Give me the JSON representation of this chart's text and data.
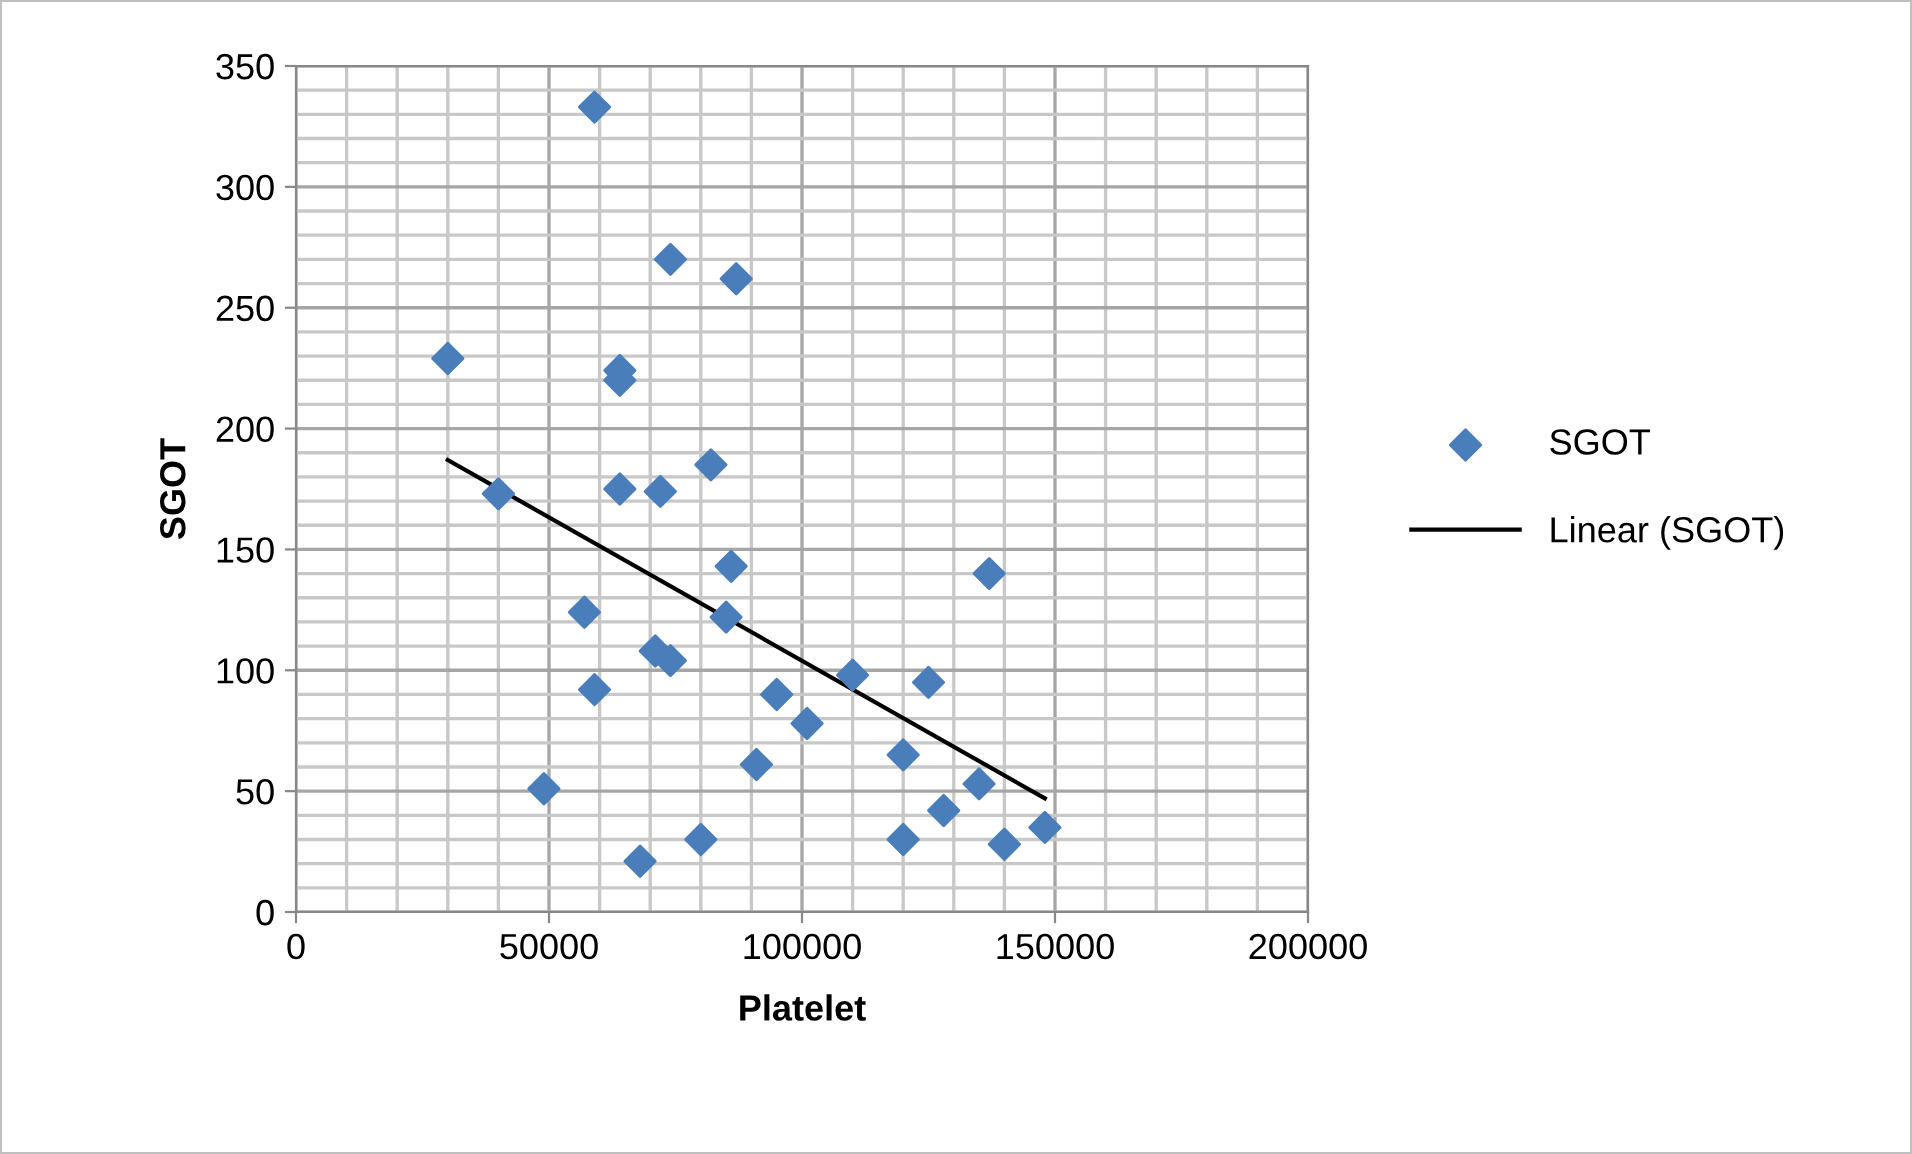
{
  "chart_data": {
    "type": "scatter",
    "xlabel": "Platelet",
    "ylabel": "SGOT",
    "xlim": [
      0,
      200000
    ],
    "xticks": [
      0,
      50000,
      100000,
      150000,
      200000
    ],
    "ylim": [
      0,
      350
    ],
    "yticks": [
      0,
      50,
      100,
      150,
      200,
      250,
      300,
      350
    ],
    "grid": true,
    "legend": "right",
    "series": [
      {
        "name": "SGOT",
        "marker": "diamond",
        "color": "#4a7ebb",
        "x": [
          30000,
          40000,
          59000,
          64000,
          64000,
          74000,
          87000,
          64000,
          57000,
          59000,
          71000,
          74000,
          72000,
          82000,
          86000,
          85000,
          49000,
          68000,
          80000,
          91000,
          95000,
          101000,
          110000,
          120000,
          125000,
          120000,
          128000,
          135000,
          137000,
          140000,
          148000
        ],
        "values": [
          229,
          173,
          333,
          224,
          220,
          270,
          262,
          175,
          124,
          92,
          108,
          104,
          174,
          185,
          143,
          122,
          51,
          21,
          30,
          61,
          90,
          78,
          98,
          65,
          95,
          30,
          42,
          53,
          140,
          28,
          35
        ]
      },
      {
        "name": "Linear (SGOT)",
        "type": "line",
        "color": "#000000",
        "x": [
          30000,
          148000
        ],
        "values": [
          187,
          47
        ],
        "line_style": "solid"
      }
    ]
  }
}
